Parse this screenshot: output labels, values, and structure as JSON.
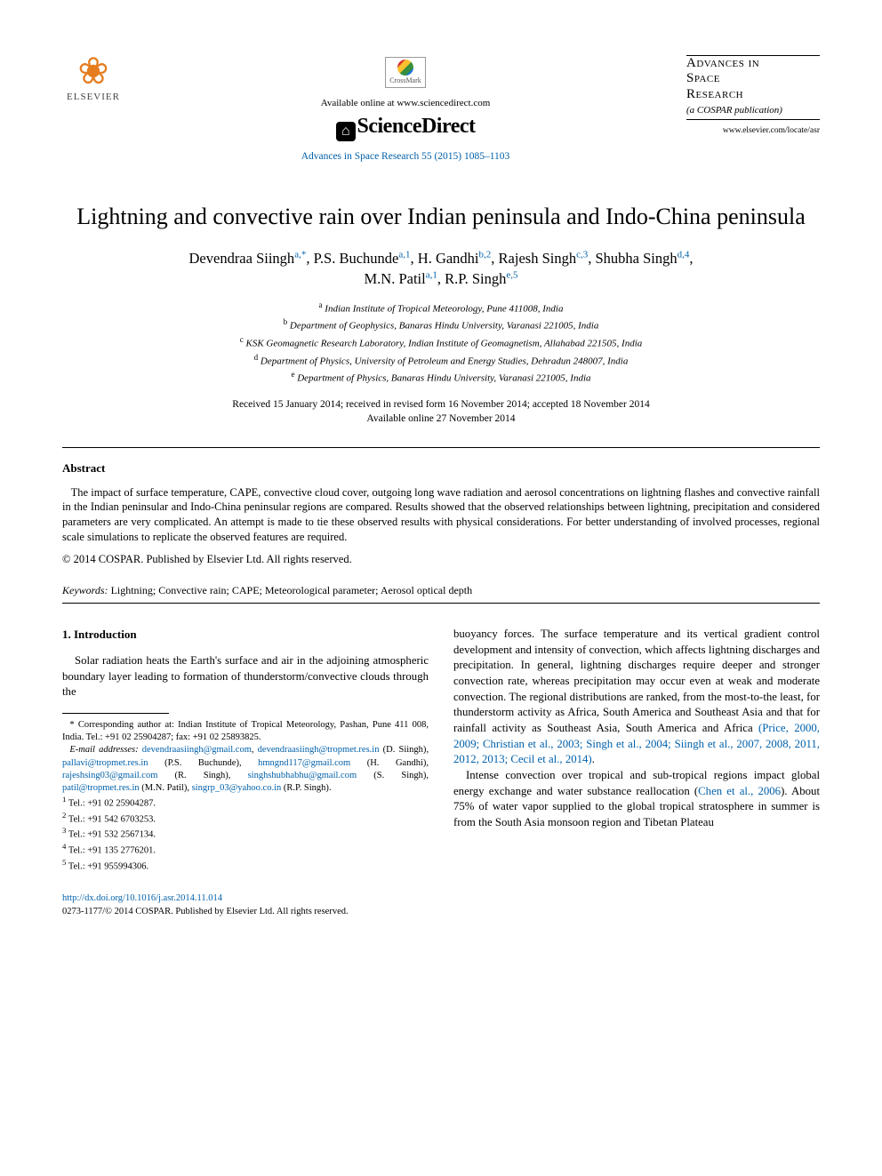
{
  "header": {
    "publisher_name": "ELSEVIER",
    "crossmark_label": "CrossMark",
    "available_online": "Available online at www.sciencedirect.com",
    "platform_name": "ScienceDirect",
    "citation": "Advances in Space Research 55 (2015) 1085–1103",
    "journal_title_l1": "Advances in",
    "journal_title_l2": "Space",
    "journal_title_l3": "Research",
    "journal_sub": "(a COSPAR publication)",
    "journal_url": "www.elsevier.com/locate/asr"
  },
  "title": "Lightning and convective rain over Indian peninsula and Indo-China peninsula",
  "authors": [
    {
      "name": "Devendraa Siingh",
      "marks": "a,*"
    },
    {
      "name": "P.S. Buchunde",
      "marks": "a,1"
    },
    {
      "name": "H. Gandhi",
      "marks": "b,2"
    },
    {
      "name": "Rajesh Singh",
      "marks": "c,3"
    },
    {
      "name": "Shubha Singh",
      "marks": "d,4"
    },
    {
      "name": "M.N. Patil",
      "marks": "a,1"
    },
    {
      "name": "R.P. Singh",
      "marks": "e,5"
    }
  ],
  "affiliations": [
    {
      "mark": "a",
      "text": "Indian Institute of Tropical Meteorology, Pune 411008, India"
    },
    {
      "mark": "b",
      "text": "Department of Geophysics, Banaras Hindu University, Varanasi 221005, India"
    },
    {
      "mark": "c",
      "text": "KSK Geomagnetic Research Laboratory, Indian Institute of Geomagnetism, Allahabad 221505, India"
    },
    {
      "mark": "d",
      "text": "Department of Physics, University of Petroleum and Energy Studies, Dehradun 248007, India"
    },
    {
      "mark": "e",
      "text": "Department of Physics, Banaras Hindu University, Varanasi 221005, India"
    }
  ],
  "dates": {
    "line1": "Received 15 January 2014; received in revised form 16 November 2014; accepted 18 November 2014",
    "line2": "Available online 27 November 2014"
  },
  "abstract": {
    "heading": "Abstract",
    "body": "The impact of surface temperature, CAPE, convective cloud cover, outgoing long wave radiation and aerosol concentrations on lightning flashes and convective rainfall in the Indian peninsular and Indo-China peninsular regions are compared. Results showed that the observed relationships between lightning, precipitation and considered parameters are very complicated. An attempt is made to tie these observed results with physical considerations. For better understanding of involved processes, regional scale simulations to replicate the observed features are required.",
    "copyright": "© 2014 COSPAR. Published by Elsevier Ltd. All rights reserved."
  },
  "keywords": {
    "label": "Keywords:",
    "text": "Lightning; Convective rain; CAPE; Meteorological parameter; Aerosol optical depth"
  },
  "intro": {
    "heading": "1. Introduction",
    "left_p1": "Solar radiation heats the Earth's surface and air in the adjoining atmospheric boundary layer leading to formation of thunderstorm/convective clouds through the",
    "right_p1": "buoyancy forces. The surface temperature and its vertical gradient control development and intensity of convection, which affects lightning discharges and precipitation. In general, lightning discharges require deeper and stronger convection rate, whereas precipitation may occur even at weak and moderate convection. The regional distributions are ranked, from the most-to-the least, for thunderstorm activity as Africa, South America and Southeast Asia and that for rainfall activity as Southeast Asia, South America and Africa ",
    "right_cite1": "(Price, 2000, 2009; Christian et al., 2003; Singh et al., 2004; Siingh et al., 2007, 2008, 2011, 2012, 2013; Cecil et al., 2014)",
    "right_p1_end": ".",
    "right_p2a": "Intense convection over tropical and sub-tropical regions impact global energy exchange and water substance reallocation (",
    "right_cite2": "Chen et al., 2006",
    "right_p2b": "). About 75% of water vapor supplied to the global tropical stratosphere in summer is from the South Asia monsoon region and Tibetan Plateau"
  },
  "footnotes": {
    "corr": "* Corresponding author at: Indian Institute of Tropical Meteorology, Pashan, Pune 411 008, India. Tel.: +91 02 25904287; fax: +91 02 25893825.",
    "email_label": "E-mail addresses:",
    "emails": [
      {
        "addr": "devendraasiingh@gmail.com",
        "who": ""
      },
      {
        "addr": "devendraasiingh@tropmet.res.in",
        "who": "(D. Siingh)"
      },
      {
        "addr": "pallavi@tropmet.res.in",
        "who": "(P.S. Buchunde)"
      },
      {
        "addr": "hmngnd117@gmail.com",
        "who": "(H. Gandhi)"
      },
      {
        "addr": "rajeshsing03@gmail.com",
        "who": "(R. Singh)"
      },
      {
        "addr": "singhshubhabhu@gmail.com",
        "who": "(S. Singh)"
      },
      {
        "addr": "patil@tropmet.res.in",
        "who": "(M.N. Patil)"
      },
      {
        "addr": "singrp_03@yahoo.co.in",
        "who": "(R.P. Singh)"
      }
    ],
    "tels": [
      {
        "mark": "1",
        "text": "Tel.: +91 02 25904287."
      },
      {
        "mark": "2",
        "text": "Tel.: +91 542 6703253."
      },
      {
        "mark": "3",
        "text": "Tel.: +91 532 2567134."
      },
      {
        "mark": "4",
        "text": "Tel.: +91 135 2776201."
      },
      {
        "mark": "5",
        "text": "Tel.: +91 955994306."
      }
    ]
  },
  "footer": {
    "doi": "http://dx.doi.org/10.1016/j.asr.2014.11.014",
    "issn_line": "0273-1177/© 2014 COSPAR. Published by Elsevier Ltd. All rights reserved."
  },
  "colors": {
    "link": "#0060aa",
    "text": "#000000",
    "logo_orange": "#e57c1e"
  }
}
